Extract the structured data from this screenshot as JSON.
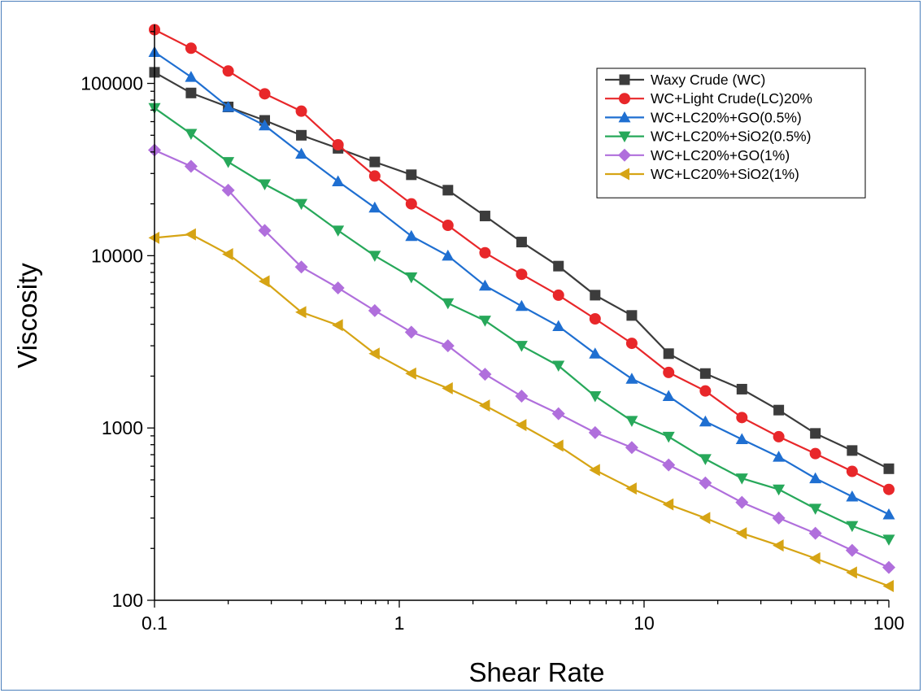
{
  "chart_data": {
    "type": "line",
    "xlabel": "Shear Rate",
    "ylabel": "Viscosity",
    "xscale": "log",
    "yscale": "log",
    "xlim": [
      0.1,
      100
    ],
    "ylim": [
      100,
      220000
    ],
    "x_ticks": [
      "0.1",
      "1",
      "10",
      "100"
    ],
    "y_ticks": [
      "100",
      "1000",
      "10000",
      "100000"
    ],
    "legend_position": "top-right",
    "x": [
      0.1,
      0.141,
      0.2,
      0.282,
      0.398,
      0.562,
      0.794,
      1.12,
      1.58,
      2.24,
      3.16,
      4.47,
      6.31,
      8.91,
      12.6,
      17.8,
      25.1,
      35.5,
      50.1,
      70.8,
      100
    ],
    "series": [
      {
        "name": "Waxy Crude (WC)",
        "color": "#3c3c3c",
        "marker": "square",
        "values": [
          116000,
          88000,
          73000,
          61000,
          50000,
          42000,
          35000,
          29500,
          24000,
          17000,
          12000,
          8700,
          5900,
          4500,
          2700,
          2070,
          1680,
          1270,
          930,
          740,
          580
        ]
      },
      {
        "name": "WC+Light Crude(LC)20%",
        "color": "#e8272a",
        "marker": "circle",
        "values": [
          205000,
          160000,
          118000,
          87000,
          69000,
          44000,
          29000,
          20000,
          15000,
          10400,
          7800,
          5900,
          4300,
          3100,
          2100,
          1640,
          1150,
          890,
          710,
          560,
          440
        ]
      },
      {
        "name": "WC+LC20%+GO(0.5%)",
        "color": "#1f6fd1",
        "marker": "triangle-up",
        "values": [
          152000,
          109000,
          73000,
          57000,
          39000,
          27000,
          19000,
          13000,
          10000,
          6700,
          5100,
          3900,
          2700,
          1930,
          1530,
          1090,
          860,
          680,
          510,
          400,
          315
        ]
      },
      {
        "name": "WC+LC20%+SiO2(0.5%)",
        "color": "#27a85a",
        "marker": "triangle-down",
        "values": [
          72000,
          51000,
          35000,
          26000,
          20000,
          14000,
          10000,
          7500,
          5300,
          4200,
          3000,
          2300,
          1530,
          1100,
          890,
          660,
          510,
          440,
          340,
          270,
          225
        ]
      },
      {
        "name": "WC+LC20%+GO(1%)",
        "color": "#b06fdc",
        "marker": "diamond",
        "values": [
          41000,
          33000,
          24000,
          14000,
          8600,
          6500,
          4800,
          3600,
          3000,
          2050,
          1530,
          1210,
          940,
          770,
          610,
          480,
          370,
          300,
          245,
          195,
          155
        ]
      },
      {
        "name": "WC+LC20%+SiO2(1%)",
        "color": "#d6a414",
        "marker": "triangle-left",
        "values": [
          12700,
          13300,
          10200,
          7100,
          4700,
          3950,
          2700,
          2070,
          1700,
          1350,
          1040,
          790,
          570,
          445,
          360,
          300,
          245,
          208,
          175,
          145,
          121
        ]
      }
    ]
  }
}
